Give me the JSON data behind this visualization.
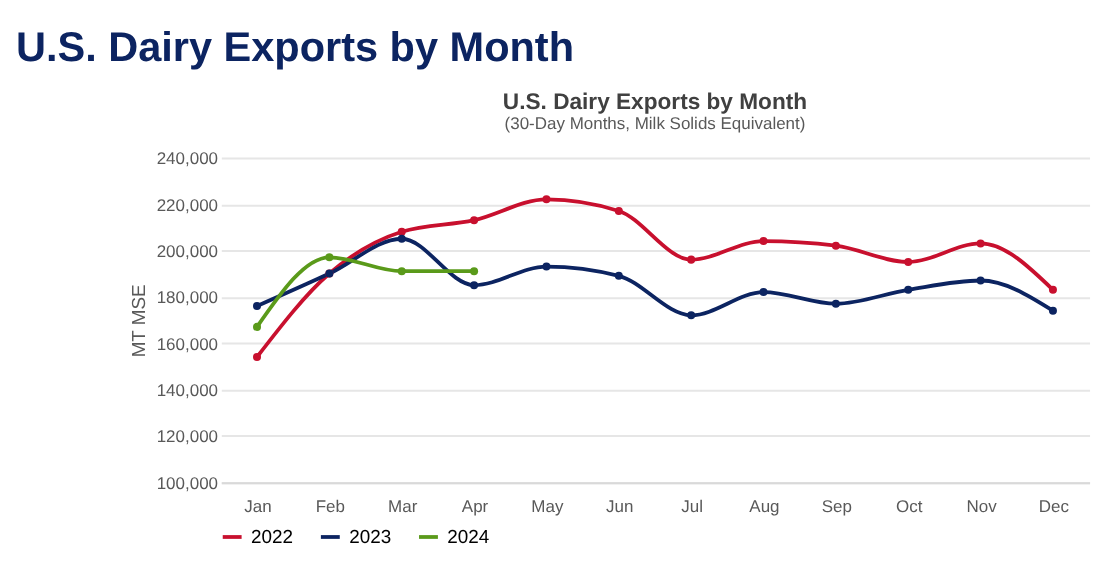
{
  "chart_data": {
    "type": "line",
    "title": "U.S. Dairy Exports by Month",
    "annotations": [
      "U.S. Dairy Exports by Month",
      "(30-Day Months, Milk Solids Equivalent)"
    ],
    "ylabel": "MT MSE",
    "categories": [
      "Jan",
      "Feb",
      "Mar",
      "Apr",
      "May",
      "Jun",
      "Jul",
      "Aug",
      "Sep",
      "Oct",
      "Nov",
      "Dec"
    ],
    "series": [
      {
        "name": "2022",
        "color": "#c8102e",
        "values": [
          154000,
          190000,
          208000,
          213000,
          222000,
          217000,
          196000,
          204000,
          202000,
          195000,
          203000,
          183000
        ]
      },
      {
        "name": "2023",
        "color": "#0c2461",
        "values": [
          176000,
          190000,
          205000,
          185000,
          193000,
          189000,
          172000,
          182000,
          177000,
          183000,
          187000,
          174000
        ]
      },
      {
        "name": "2024",
        "color": "#5a9a1a",
        "values": [
          167000,
          197000,
          191000,
          191000,
          null,
          null,
          null,
          null,
          null,
          null,
          null,
          null
        ]
      }
    ],
    "ylim": [
      100000,
      240000
    ],
    "yticks": [
      {
        "value": 100000,
        "label": "100,000"
      },
      {
        "value": 120000,
        "label": "120,000"
      },
      {
        "value": 140000,
        "label": "140,000"
      },
      {
        "value": 160000,
        "label": "160,000"
      },
      {
        "value": 180000,
        "label": "180,000"
      },
      {
        "value": 200000,
        "label": "200,000"
      },
      {
        "value": 220000,
        "label": "220,000"
      },
      {
        "value": 240000,
        "label": "240,000"
      }
    ],
    "grid": "y",
    "legend": "bottom",
    "marker": "circle",
    "line_style": "solid"
  }
}
